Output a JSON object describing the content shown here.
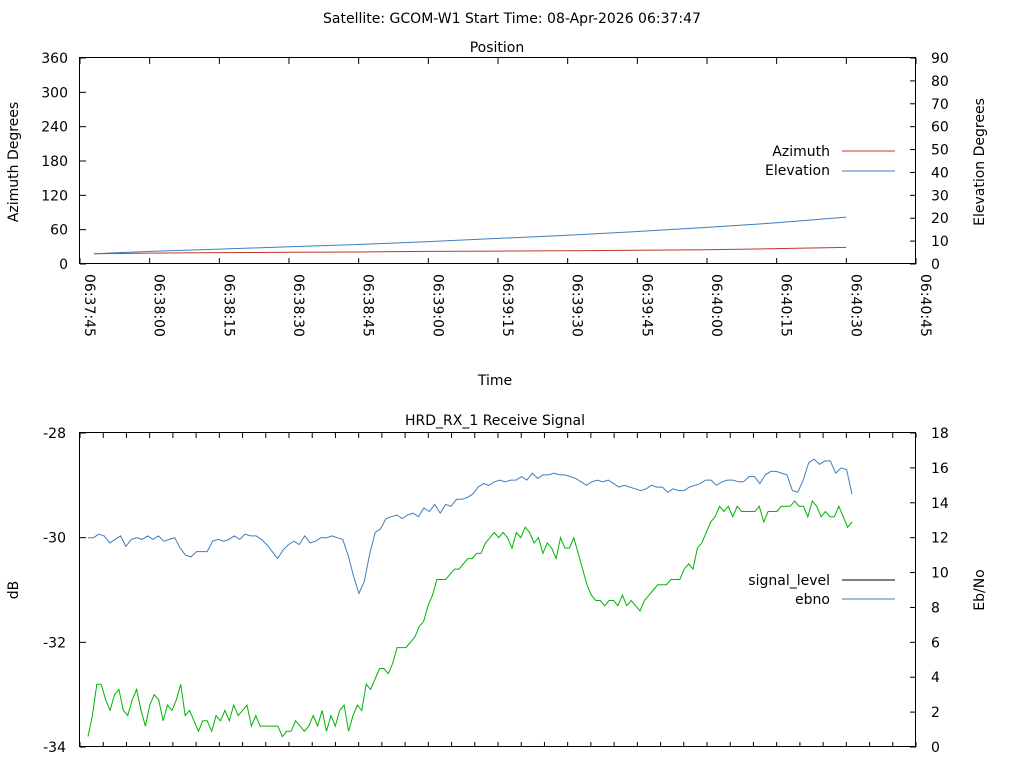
{
  "header": {
    "title": "Satellite: GCOM-W1    Start Time: 08-Apr-2026 06:37:47"
  },
  "colors": {
    "azimuth": "#c0392b",
    "elevation": "#3f7ebf",
    "signal_level": "#000000",
    "ebno_line": "#3f7ebf",
    "signal_trace": "#00b300"
  },
  "chart_data": [
    {
      "type": "line",
      "title": "Position",
      "xlabel": "Time",
      "ylabel": "Azimuth Degrees",
      "y2label": "Elevation Degrees",
      "ylim": [
        0,
        360
      ],
      "y2lim": [
        0,
        90
      ],
      "xlim": [
        "06:37:45",
        "06:40:45"
      ],
      "yticks": [
        "0",
        "60",
        "120",
        "180",
        "240",
        "300",
        "360"
      ],
      "y2ticks": [
        "0",
        "10",
        "20",
        "30",
        "40",
        "50",
        "60",
        "70",
        "80",
        "90"
      ],
      "xticks": [
        "06:37:45",
        "06:38:00",
        "06:38:15",
        "06:38:30",
        "06:38:45",
        "06:39:00",
        "06:39:15",
        "06:39:30",
        "06:39:45",
        "06:40:00",
        "06:40:15",
        "06:40:30",
        "06:40:45"
      ],
      "legend_position": "right",
      "series": [
        {
          "name": "Azimuth",
          "axis": "left",
          "x": [
            "06:37:45",
            "06:38:00",
            "06:38:15",
            "06:38:30",
            "06:38:45",
            "06:39:00",
            "06:39:15",
            "06:39:30",
            "06:39:45",
            "06:40:00",
            "06:40:15",
            "06:40:30"
          ],
          "values": [
            18,
            19,
            20,
            20.5,
            21,
            22,
            22.5,
            23,
            24,
            25,
            27,
            29
          ]
        },
        {
          "name": "Elevation",
          "axis": "right",
          "x": [
            "06:37:45",
            "06:38:00",
            "06:38:15",
            "06:38:30",
            "06:38:45",
            "06:39:00",
            "06:39:15",
            "06:39:30",
            "06:39:45",
            "06:40:00",
            "06:40:15",
            "06:40:30"
          ],
          "values": [
            4.5,
            5.5,
            6.5,
            7.5,
            8.5,
            9.8,
            11.2,
            12.6,
            14.2,
            16,
            18,
            20.5
          ]
        }
      ]
    },
    {
      "type": "line",
      "title": "HRD_RX_1 Receive Signal",
      "ylabel": "dB",
      "y2label": "Eb/No",
      "ylim": [
        -34,
        -28
      ],
      "y2lim": [
        0,
        18
      ],
      "yticks": [
        "-34",
        "-32",
        "-30",
        "-28"
      ],
      "y2ticks": [
        "0",
        "2",
        "4",
        "6",
        "8",
        "10",
        "12",
        "14",
        "16",
        "18"
      ],
      "legend_position": "right",
      "series": [
        {
          "name": "signal_level",
          "axis": "left",
          "color": "#00b300",
          "values": [
            -33.8,
            -33.4,
            -32.8,
            -32.8,
            -33.1,
            -33.3,
            -33.0,
            -32.9,
            -33.3,
            -33.4,
            -33.1,
            -32.9,
            -33.3,
            -33.6,
            -33.2,
            -33.0,
            -33.1,
            -33.5,
            -33.2,
            -33.3,
            -33.1,
            -32.8,
            -33.4,
            -33.3,
            -33.5,
            -33.7,
            -33.5,
            -33.5,
            -33.7,
            -33.4,
            -33.5,
            -33.3,
            -33.5,
            -33.2,
            -33.4,
            -33.3,
            -33.2,
            -33.6,
            -33.4,
            -33.6,
            -33.6,
            -33.6,
            -33.6,
            -33.6,
            -33.8,
            -33.7,
            -33.7,
            -33.5,
            -33.6,
            -33.7,
            -33.6,
            -33.4,
            -33.6,
            -33.3,
            -33.7,
            -33.4,
            -33.6,
            -33.3,
            -33.2,
            -33.7,
            -33.4,
            -33.2,
            -33.3,
            -32.8,
            -32.9,
            -32.7,
            -32.5,
            -32.5,
            -32.6,
            -32.4,
            -32.1,
            -32.1,
            -32.1,
            -32.0,
            -31.9,
            -31.7,
            -31.6,
            -31.3,
            -31.1,
            -30.8,
            -30.8,
            -30.8,
            -30.7,
            -30.6,
            -30.6,
            -30.5,
            -30.4,
            -30.4,
            -30.3,
            -30.3,
            -30.1,
            -30.0,
            -29.9,
            -30.0,
            -29.9,
            -30.0,
            -30.2,
            -29.9,
            -30.0,
            -29.8,
            -29.9,
            -30.1,
            -30.0,
            -30.3,
            -30.1,
            -30.2,
            -30.4,
            -30.0,
            -30.2,
            -30.2,
            -30.0,
            -30.3,
            -30.6,
            -30.9,
            -31.1,
            -31.2,
            -31.2,
            -31.3,
            -31.2,
            -31.2,
            -31.3,
            -31.1,
            -31.3,
            -31.2,
            -31.3,
            -31.4,
            -31.2,
            -31.1,
            -31.0,
            -30.9,
            -30.9,
            -30.9,
            -30.8,
            -30.8,
            -30.8,
            -30.6,
            -30.5,
            -30.6,
            -30.2,
            -30.1,
            -29.9,
            -29.7,
            -29.6,
            -29.4,
            -29.5,
            -29.4,
            -29.6,
            -29.4,
            -29.5,
            -29.5,
            -29.5,
            -29.5,
            -29.4,
            -29.7,
            -29.5,
            -29.5,
            -29.5,
            -29.4,
            -29.4,
            -29.4,
            -29.3,
            -29.4,
            -29.4,
            -29.6,
            -29.3,
            -29.4,
            -29.6,
            -29.5,
            -29.6,
            -29.6,
            -29.4,
            -29.6,
            -29.8,
            -29.7
          ]
        },
        {
          "name": "ebno",
          "axis": "right",
          "color": "#3f7ebf",
          "values": [
            12,
            12,
            12.2,
            12.1,
            11.7,
            11.9,
            12.1,
            11.5,
            11.9,
            12,
            11.9,
            12.1,
            11.9,
            12.1,
            11.8,
            11.9,
            12.0,
            11.4,
            11.0,
            10.9,
            11.2,
            11.2,
            11.2,
            11.8,
            11.9,
            11.8,
            11.9,
            12.1,
            11.9,
            12.2,
            12.1,
            12.1,
            11.9,
            11.6,
            11.2,
            10.8,
            11.3,
            11.6,
            11.8,
            11.6,
            12.1,
            11.7,
            11.8,
            12,
            12.0,
            12.1,
            12.0,
            11.9,
            11.0,
            9.8,
            8.8,
            9.5,
            11.1,
            12.3,
            12.5,
            13.1,
            13.2,
            13.3,
            13.1,
            13.3,
            13.4,
            13.2,
            13.7,
            13.5,
            13.9,
            13.4,
            13.9,
            13.8,
            14.2,
            14.2,
            14.3,
            14.5,
            14.9,
            15.1,
            15.0,
            15.2,
            15.3,
            15.2,
            15.3,
            15.3,
            15.5,
            15.3,
            15.7,
            15.4,
            15.6,
            15.6,
            15.7,
            15.6,
            15.6,
            15.5,
            15.4,
            15.2,
            15.0,
            15.2,
            15.3,
            15.2,
            15.3,
            15.1,
            14.9,
            15.0,
            14.9,
            14.8,
            14.7,
            14.8,
            15.0,
            14.9,
            14.9,
            14.6,
            14.8,
            14.7,
            14.7,
            14.9,
            15.0,
            15.1,
            15.3,
            15.3,
            15.0,
            15.2,
            15.3,
            15.3,
            15.2,
            15.2,
            15.5,
            15.5,
            15.1,
            15.6,
            15.8,
            15.8,
            15.7,
            15.6,
            14.7,
            14.6,
            15.3,
            16.3,
            16.5,
            16.2,
            16.4,
            16.4,
            15.7,
            16.0,
            15.9,
            14.5
          ]
        }
      ]
    }
  ]
}
